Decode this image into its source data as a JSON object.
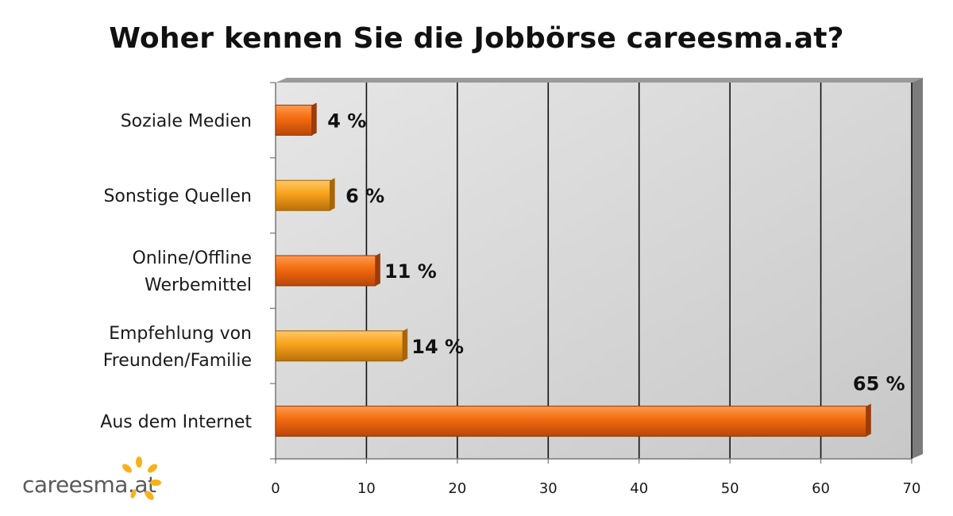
{
  "chart_data": {
    "type": "bar",
    "orientation": "horizontal",
    "title": "Woher kennen Sie die Jobbörse careesma.at?",
    "categories": [
      "Soziale Medien",
      "Sonstige Quellen",
      "Online/Offline Werbemittel",
      "Empfehlung von Freunden/Familie",
      "Aus dem Internet"
    ],
    "category_lines": [
      [
        "Soziale Medien"
      ],
      [
        "Sonstige Quellen"
      ],
      [
        "Online/Offline",
        "Werbemittel"
      ],
      [
        "Empfehlung von",
        "Freunden/Familie"
      ],
      [
        "Aus dem Internet"
      ]
    ],
    "values": [
      4,
      6,
      11,
      14,
      65
    ],
    "value_labels": [
      "4 %",
      "6 %",
      "11 %",
      "14 %",
      "65 %"
    ],
    "bar_colors": [
      "#f26a0f",
      "#f7a21a",
      "#f26a0f",
      "#f7a21a",
      "#f26a0f"
    ],
    "xlim": [
      0,
      70
    ],
    "x_ticks": [
      0,
      10,
      20,
      30,
      40,
      50,
      60,
      70
    ],
    "grid": true,
    "plot_background": "#d4d4d4"
  },
  "logo": {
    "text": "careesma.at",
    "text_color": "#5a5a5a",
    "mark_color": "#f7b21a"
  }
}
